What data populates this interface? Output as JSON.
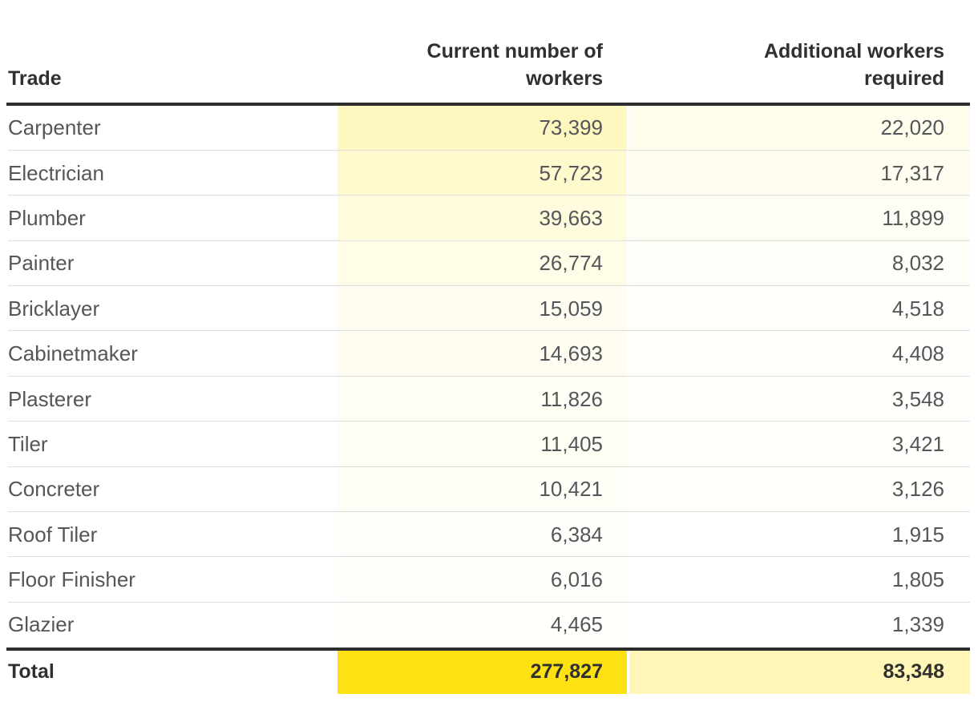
{
  "header": {
    "trade": "Trade",
    "current": "Current number of\nworkers",
    "additional": "Additional workers\nrequired"
  },
  "total_label": "Total",
  "colors": {
    "accent_yellow": "#fee112",
    "rule_dark": "#2d2d2d",
    "row_separator": "#dedede",
    "body_text": "#55565a",
    "header_text": "#303030"
  },
  "chart_data": {
    "type": "table",
    "columns": [
      "Trade",
      "Current number of workers",
      "Additional workers required"
    ],
    "rows": [
      [
        "Carpenter",
        73399,
        22020
      ],
      [
        "Electrician",
        57723,
        17317
      ],
      [
        "Plumber",
        39663,
        11899
      ],
      [
        "Painter",
        26774,
        8032
      ],
      [
        "Bricklayer",
        15059,
        4518
      ],
      [
        "Cabinetmaker",
        14693,
        4408
      ],
      [
        "Plasterer",
        11826,
        3548
      ],
      [
        "Tiler",
        11405,
        3421
      ],
      [
        "Concreter",
        10421,
        3126
      ],
      [
        "Roof Tiler",
        6384,
        1915
      ],
      [
        "Floor Finisher",
        6016,
        1805
      ],
      [
        "Glazier",
        4465,
        1339
      ]
    ],
    "total_row": [
      "Total",
      277827,
      83348
    ],
    "heatmap": {
      "min_color": "#ffffff",
      "max_color": "#fee112",
      "scale_max": 277827
    },
    "layout": {
      "grid": false,
      "number_format": "comma",
      "value_columns_shaded": true
    }
  }
}
